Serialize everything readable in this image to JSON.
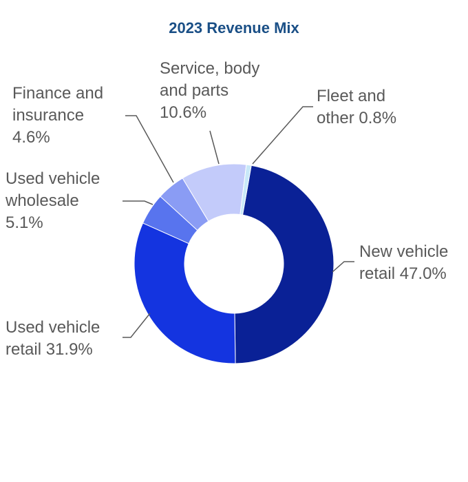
{
  "chart_data": {
    "type": "donut",
    "title": "2023 Revenue Mix",
    "categories": [
      "New vehicle retail",
      "Used vehicle retail",
      "Used vehicle wholesale",
      "Finance and insurance",
      "Service, body and parts",
      "Fleet and other"
    ],
    "values": [
      47.0,
      31.9,
      5.1,
      4.6,
      10.6,
      0.8
    ],
    "value_labels": [
      "47.0%",
      "31.9%",
      "5.1%",
      "4.6%",
      "10.6%",
      "0.8%"
    ],
    "colors": [
      "#0a2196",
      "#1434e0",
      "#5874ee",
      "#8a9cf4",
      "#c3cbfa",
      "#c8e8f8"
    ]
  }
}
